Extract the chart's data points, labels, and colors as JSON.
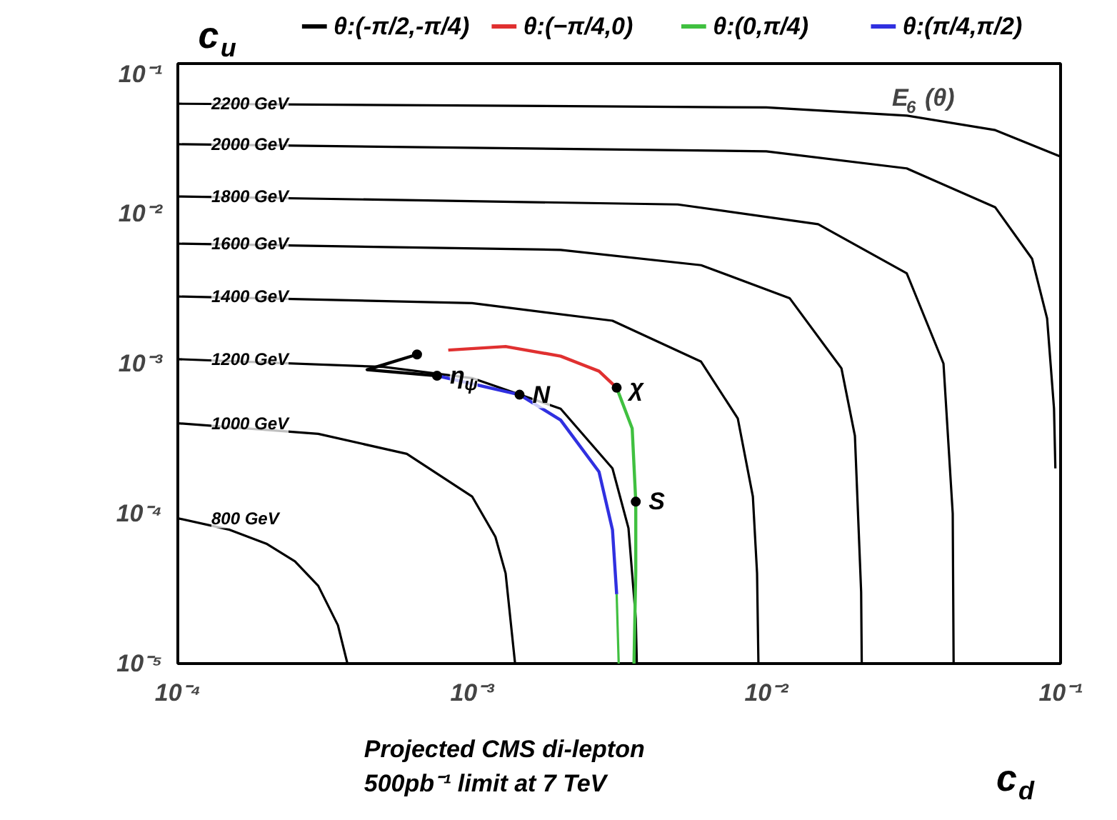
{
  "chart_data": {
    "type": "line",
    "xlabel": "c$_{d}$",
    "ylabel": "c$_{u}$",
    "log": "xy",
    "xlim": [
      0.0001,
      0.1
    ],
    "ylim": [
      1e-05,
      0.1
    ],
    "xticks": [
      {
        "value": 0.0001,
        "label": "10⁻⁴"
      },
      {
        "value": 0.001,
        "label": "10⁻³"
      },
      {
        "value": 0.01,
        "label": "10⁻²"
      },
      {
        "value": 0.1,
        "label": "10⁻¹"
      }
    ],
    "yticks": [
      {
        "value": 1e-05,
        "label": "10⁻⁵"
      },
      {
        "value": 0.0001,
        "label": "10⁻⁴"
      },
      {
        "value": 0.001,
        "label": "10⁻³"
      },
      {
        "value": 0.01,
        "label": "10⁻²"
      },
      {
        "value": 0.1,
        "label": "10⁻¹"
      }
    ],
    "grid": false,
    "legend": "top",
    "marker": "none",
    "line_style": "solid",
    "series": [
      {
        "type": "line",
        "color": "#000000",
        "x": [
          0.0001,
          0.01,
          0.03,
          0.06,
          0.1
        ],
        "values": [
          0.054,
          0.051,
          0.045,
          0.036,
          0.024
        ]
      },
      {
        "type": "line",
        "color": "#000000",
        "x": [
          0.0001,
          0.01,
          0.03,
          0.06,
          0.08,
          0.09,
          0.095,
          0.096
        ],
        "values": [
          0.029,
          0.026,
          0.02,
          0.011,
          0.005,
          0.002,
          0.0005,
          0.0002
        ]
      },
      {
        "type": "line",
        "color": "#000000",
        "x": [
          0.0001,
          0.005,
          0.015,
          0.03,
          0.04,
          0.043,
          0.0433
        ],
        "values": [
          0.013,
          0.0115,
          0.0085,
          0.004,
          0.001,
          0.0001,
          1e-05
        ]
      },
      {
        "type": "line",
        "color": "#000000",
        "x": [
          0.0001,
          0.002,
          0.006,
          0.012,
          0.018,
          0.02,
          0.021,
          0.0211
        ],
        "values": [
          0.0063,
          0.00573,
          0.00453,
          0.00273,
          0.00093,
          0.00033,
          3e-05,
          1e-05
        ]
      },
      {
        "type": "line",
        "color": "#000000",
        "x": [
          0.0001,
          0.001,
          0.003,
          0.006,
          0.008,
          0.009,
          0.0093,
          0.0094
        ],
        "values": [
          0.0028,
          0.00253,
          0.00193,
          0.00103,
          0.00043,
          0.00013,
          4e-05,
          1e-05
        ]
      },
      {
        "type": "line",
        "color": "#000000",
        "x": [
          0.0001,
          0.0005,
          0.001,
          0.002,
          0.003,
          0.0034,
          0.0036,
          0.00363
        ],
        "values": [
          0.00107,
          0.00095,
          0.0008,
          0.0005,
          0.0002,
          8e-05,
          2e-05,
          1e-05
        ]
      },
      {
        "type": "line",
        "color": "#000000",
        "x": [
          0.0001,
          0.0003,
          0.0006,
          0.001,
          0.0012,
          0.0013,
          0.0014
        ],
        "values": [
          0.0004,
          0.00034,
          0.00025,
          0.00013,
          7e-05,
          4e-05,
          1e-05
        ]
      },
      {
        "type": "line",
        "color": "#000000",
        "x": [
          0.0001,
          0.00015,
          0.0002,
          0.00025,
          0.0003,
          0.00035,
          0.000377
        ],
        "values": [
          9.3e-05,
          7.8e-05,
          6.3e-05,
          4.8e-05,
          3.3e-05,
          1.8e-05,
          1e-05
        ]
      },
      {
        "type": "line",
        "name": "θ:(-π/2,-π/4)",
        "color": "#000000",
        "x": [
          0.00065,
          0.00044,
          0.00076
        ],
        "values": [
          0.00115,
          0.00091,
          0.00083
        ]
      },
      {
        "type": "line",
        "name": "θ:(−π/4,0)",
        "color": "#e03030",
        "x": [
          0.00083,
          0.0013,
          0.002,
          0.0027,
          0.0031
        ],
        "values": [
          0.00123,
          0.0013,
          0.00112,
          0.00089,
          0.00069
        ]
      },
      {
        "type": "line",
        "name": "θ:(0,π/4)",
        "color": "#40c040",
        "x": [
          0.0031,
          0.0035,
          0.0036,
          0.0036,
          0.00355
        ],
        "values": [
          0.00069,
          0.00037,
          0.00012,
          4.1e-05,
          1e-05
        ]
      },
      {
        "type": "line",
        "name": "θ:(π/4,π/2)",
        "color": "#3030e0",
        "x": [
          0.00076,
          0.00145,
          0.002,
          0.0027,
          0.003,
          0.0031
        ],
        "values": [
          0.00083,
          0.00062,
          0.00042,
          0.00019,
          7.8e-05,
          2.9e-05
        ]
      },
      {
        "type": "line",
        "color": "#40c040",
        "x": [
          0.0031,
          0.00315
        ],
        "values": [
          2.9e-05,
          1e-05
        ]
      },
      {
        "type": "scatter",
        "marker": "circle",
        "color": "#000000",
        "x": [
          0.00065,
          0.00076,
          0.00145,
          0.0031,
          0.0036
        ],
        "values": [
          0.00115,
          0.00083,
          0.00062,
          0.00069,
          0.00012
        ]
      }
    ],
    "annotations": [
      {
        "text": "2200 GeV",
        "x": 0.00013,
        "y": 0.054
      },
      {
        "text": "2000 GeV",
        "x": 0.00013,
        "y": 0.029
      },
      {
        "text": "1800 GeV",
        "x": 0.00013,
        "y": 0.013
      },
      {
        "text": "1600 GeV",
        "x": 0.00013,
        "y": 0.0063
      },
      {
        "text": "1400 GeV",
        "x": 0.00013,
        "y": 0.0028
      },
      {
        "text": "1200 GeV",
        "x": 0.00013,
        "y": 0.00107
      },
      {
        "text": "1000 GeV",
        "x": 0.00013,
        "y": 0.0004
      },
      {
        "text": "800 GeV",
        "x": 0.00013,
        "y": 9.3e-05
      },
      {
        "text": "η$_{ψ}$",
        "x": 0.00076,
        "y": 0.00083
      },
      {
        "text": "N",
        "x": 0.00145,
        "y": 0.00062
      },
      {
        "text": "χ",
        "x": 0.0031,
        "y": 0.00069
      },
      {
        "text": "S",
        "x": 0.0036,
        "y": 0.00012
      },
      "E$_{6}$ (θ)",
      "Projected  CMS  di-lepton\n500pb⁻¹ limit at 7 TeV"
    ]
  }
}
